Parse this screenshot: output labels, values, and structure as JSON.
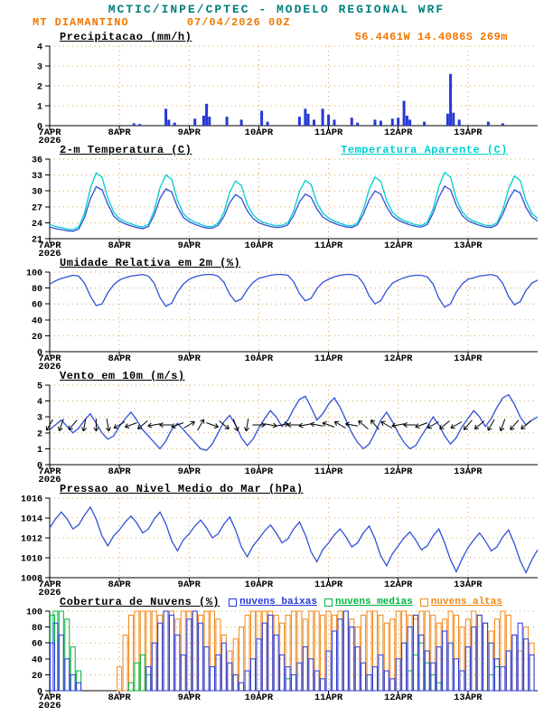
{
  "header": {
    "title": "MCTIC/INPE/CPTEC - MODELO REGIONAL WRF",
    "station": "MT DIAMANTINO",
    "run_datetime": "07/04/2026 00Z",
    "location": "56.4461W 14.4086S 269m"
  },
  "colors": {
    "title": "#007f7f",
    "accent_orange": "#f07800",
    "line_blue": "#3050d8",
    "cyan": "#00cfcf",
    "bar_blue": "#2638d8",
    "green": "#00b43c",
    "cloud_orange": "#f08818",
    "grid": "#d8a050",
    "axis": "#000000"
  },
  "x_axis": {
    "day_labels": [
      "7APR",
      "8APR",
      "9APR",
      "10APR",
      "11APR",
      "12APR",
      "13APR"
    ],
    "year_label": "2026",
    "hours_span": 168,
    "step_hours": 2
  },
  "chart_data": [
    {
      "id": "precipitation",
      "type": "bar",
      "title": "Precipitacao (mm/h)",
      "ylim": [
        0,
        4
      ],
      "yticks": [
        0,
        1,
        2,
        3,
        4
      ],
      "bar_color": "#2638d8",
      "bars": [
        [
          29,
          0.12
        ],
        [
          31,
          0.08
        ],
        [
          40,
          0.85
        ],
        [
          41,
          0.3
        ],
        [
          43,
          0.15
        ],
        [
          50,
          0.35
        ],
        [
          53,
          0.5
        ],
        [
          54,
          1.1
        ],
        [
          55,
          0.45
        ],
        [
          61,
          0.45
        ],
        [
          66,
          0.3
        ],
        [
          73,
          0.75
        ],
        [
          75,
          0.2
        ],
        [
          86,
          0.45
        ],
        [
          88,
          0.85
        ],
        [
          89,
          0.6
        ],
        [
          91,
          0.3
        ],
        [
          94,
          0.85
        ],
        [
          96,
          0.55
        ],
        [
          98,
          0.3
        ],
        [
          104,
          0.4
        ],
        [
          106,
          0.15
        ],
        [
          112,
          0.3
        ],
        [
          114,
          0.25
        ],
        [
          118,
          0.35
        ],
        [
          120,
          0.4
        ],
        [
          122,
          1.25
        ],
        [
          123,
          0.5
        ],
        [
          124,
          0.3
        ],
        [
          129,
          0.2
        ],
        [
          137,
          0.6
        ],
        [
          138,
          2.6
        ],
        [
          139,
          0.65
        ],
        [
          141,
          0.3
        ],
        [
          151,
          0.2
        ],
        [
          156,
          0.12
        ]
      ]
    },
    {
      "id": "temperature",
      "type": "line",
      "title": "2-m Temperatura (C)",
      "right_label": "Temperatura Aparente (C)",
      "ylim": [
        21,
        36
      ],
      "yticks": [
        21,
        24,
        27,
        30,
        33,
        36
      ],
      "series": [
        {
          "name": "2-m temperatura",
          "color": "#3050d8",
          "values": [
            23.2,
            22.9,
            22.7,
            22.5,
            22.4,
            22.8,
            25.0,
            28.5,
            30.8,
            30.2,
            27.5,
            25.3,
            24.3,
            23.8,
            23.4,
            23.1,
            22.9,
            23.3,
            25.5,
            28.6,
            30.4,
            29.8,
            27.0,
            25.0,
            24.2,
            23.7,
            23.3,
            23.0,
            23.0,
            23.5,
            25.2,
            27.8,
            29.3,
            28.6,
            26.3,
            24.8,
            24.0,
            23.6,
            23.3,
            23.1,
            23.2,
            23.6,
            25.4,
            27.9,
            29.4,
            28.8,
            26.6,
            25.1,
            24.4,
            23.9,
            23.5,
            23.2,
            23.1,
            23.6,
            25.6,
            28.3,
            30.0,
            29.4,
            27.0,
            25.3,
            24.5,
            24.0,
            23.6,
            23.3,
            23.2,
            23.7,
            25.8,
            28.8,
            30.9,
            30.2,
            27.3,
            25.4,
            24.4,
            23.9,
            23.5,
            23.2,
            23.1,
            23.6,
            25.6,
            28.4,
            30.2,
            29.6,
            26.9,
            25.1,
            24.3
          ]
        },
        {
          "name": "temperatura aparente",
          "color": "#00cfcf",
          "values": [
            23.7,
            23.3,
            23.1,
            22.8,
            22.7,
            23.2,
            25.8,
            30.5,
            33.4,
            32.6,
            28.7,
            26.0,
            24.8,
            24.2,
            23.8,
            23.4,
            23.2,
            23.7,
            26.3,
            30.6,
            33.0,
            32.2,
            28.2,
            25.7,
            24.7,
            24.1,
            23.7,
            23.3,
            23.3,
            23.9,
            26.0,
            29.8,
            31.9,
            31.0,
            27.5,
            25.5,
            24.5,
            24.0,
            23.7,
            23.4,
            23.5,
            24.0,
            26.2,
            29.9,
            32.0,
            31.2,
            27.8,
            25.8,
            24.9,
            24.3,
            23.9,
            23.5,
            23.4,
            24.0,
            26.4,
            30.3,
            32.6,
            31.8,
            28.2,
            26.0,
            25.0,
            24.4,
            24.0,
            23.6,
            23.5,
            24.1,
            26.6,
            30.8,
            33.5,
            32.6,
            28.5,
            26.1,
            24.9,
            24.3,
            23.9,
            23.5,
            23.4,
            24.0,
            26.4,
            30.4,
            32.8,
            32.0,
            28.1,
            25.8,
            24.8
          ]
        }
      ]
    },
    {
      "id": "humidity",
      "type": "line",
      "title": "Umidade Relativa em 2m (%)",
      "ylim": [
        0,
        100
      ],
      "yticks": [
        0,
        20,
        40,
        60,
        80,
        100
      ],
      "series": [
        {
          "name": "umidade relativa 2m",
          "color": "#3050d8",
          "values": [
            85,
            89,
            92,
            94,
            96,
            95,
            86,
            70,
            58,
            60,
            74,
            84,
            90,
            93,
            95,
            96,
            97,
            95,
            86,
            68,
            57,
            61,
            75,
            85,
            91,
            94,
            96,
            97,
            97,
            95,
            87,
            72,
            63,
            66,
            78,
            87,
            92,
            94,
            96,
            97,
            97,
            96,
            88,
            73,
            64,
            67,
            79,
            87,
            91,
            94,
            96,
            97,
            97,
            95,
            86,
            70,
            60,
            64,
            77,
            86,
            90,
            93,
            95,
            96,
            96,
            94,
            85,
            67,
            56,
            60,
            75,
            85,
            91,
            93,
            95,
            96,
            97,
            95,
            86,
            69,
            59,
            63,
            77,
            86,
            90
          ]
        }
      ]
    },
    {
      "id": "wind",
      "type": "wind",
      "title": "Vento em 10m (m/s)",
      "ylim": [
        0,
        5
      ],
      "yticks": [
        0,
        1,
        2,
        3,
        4,
        5
      ],
      "line_color": "#3050d8",
      "speed": [
        2.2,
        2.5,
        2.8,
        2.4,
        2.0,
        2.3,
        2.8,
        3.2,
        2.6,
        2.0,
        1.6,
        1.8,
        2.4,
        2.9,
        3.3,
        2.8,
        2.2,
        1.8,
        1.4,
        1.0,
        1.5,
        2.2,
        2.6,
        2.2,
        1.8,
        1.4,
        1.0,
        0.9,
        1.3,
        2.0,
        2.7,
        3.1,
        2.5,
        1.7,
        1.2,
        1.6,
        2.3,
        2.9,
        3.4,
        3.0,
        2.4,
        2.8,
        3.5,
        4.1,
        4.3,
        3.6,
        2.8,
        3.2,
        3.8,
        4.2,
        3.6,
        2.8,
        2.0,
        1.4,
        1.0,
        1.3,
        2.0,
        2.8,
        3.3,
        2.7,
        2.0,
        1.4,
        1.0,
        1.2,
        1.8,
        2.4,
        3.0,
        2.5,
        1.8,
        1.3,
        1.7,
        2.4,
        2.9,
        3.4,
        3.0,
        2.4,
        2.9,
        3.6,
        4.2,
        4.4,
        3.8,
        3.0,
        2.5,
        2.8,
        3.0
      ],
      "arrows": {
        "y_value": 2.5,
        "step_hours": 4,
        "color": "#000000",
        "dir_deg": [
          120,
          110,
          130,
          100,
          90,
          80,
          150,
          160,
          140,
          170,
          180,
          160,
          330,
          300,
          20,
          40,
          70,
          100,
          0,
          10,
          350,
          180,
          170,
          190,
          200,
          210,
          190,
          220,
          230,
          210,
          170,
          180,
          160,
          150,
          140,
          150,
          130,
          140,
          120,
          110,
          130,
          140
        ]
      }
    },
    {
      "id": "pressure",
      "type": "line",
      "title": "Pressao ao Nivel Medio do Mar (hPa)",
      "ylim": [
        1008,
        1016
      ],
      "yticks": [
        1008,
        1010,
        1012,
        1014,
        1016
      ],
      "series": [
        {
          "name": "pressao nivel medio do mar",
          "color": "#3050d8",
          "values": [
            1013.0,
            1013.9,
            1014.6,
            1013.9,
            1012.9,
            1013.3,
            1014.3,
            1015.1,
            1013.9,
            1012.2,
            1011.2,
            1012.2,
            1012.8,
            1013.6,
            1014.2,
            1013.5,
            1012.5,
            1012.9,
            1013.9,
            1014.6,
            1013.4,
            1011.7,
            1010.7,
            1011.8,
            1012.4,
            1013.2,
            1013.8,
            1013.0,
            1012.0,
            1012.4,
            1013.4,
            1014.1,
            1012.8,
            1011.1,
            1010.1,
            1011.2,
            1011.9,
            1012.7,
            1013.3,
            1012.5,
            1011.5,
            1011.9,
            1012.9,
            1013.6,
            1012.3,
            1010.6,
            1009.6,
            1010.8,
            1011.5,
            1012.3,
            1012.9,
            1012.1,
            1011.1,
            1011.5,
            1012.5,
            1013.2,
            1011.9,
            1010.2,
            1009.2,
            1010.4,
            1011.2,
            1012.0,
            1012.6,
            1011.8,
            1010.8,
            1011.2,
            1012.2,
            1012.9,
            1011.5,
            1009.8,
            1008.6,
            1009.9,
            1011.0,
            1011.8,
            1012.5,
            1011.7,
            1010.7,
            1011.1,
            1012.1,
            1012.8,
            1011.4,
            1009.7,
            1008.5,
            1009.8,
            1010.8
          ]
        }
      ]
    },
    {
      "id": "clouds",
      "type": "cloudbar",
      "title": "Cobertura de Nuvens (%)",
      "ylim": [
        0,
        100
      ],
      "yticks": [
        0,
        20,
        40,
        60,
        80,
        100
      ],
      "step_hours": 2,
      "legend": [
        {
          "label": "nuvens baixas",
          "color": "#2638d8"
        },
        {
          "label": "nuvens medias",
          "color": "#00b43c"
        },
        {
          "label": "nuvens altas",
          "color": "#f08818"
        }
      ],
      "series": [
        {
          "key": "altas",
          "color": "#f08818",
          "values": [
            0,
            0,
            0,
            0,
            0,
            0,
            0,
            0,
            0,
            0,
            0,
            0,
            30,
            70,
            95,
            100,
            100,
            100,
            100,
            95,
            100,
            100,
            90,
            100,
            100,
            100,
            95,
            100,
            100,
            90,
            70,
            50,
            65,
            80,
            95,
            100,
            100,
            100,
            100,
            95,
            85,
            95,
            100,
            100,
            90,
            100,
            100,
            95,
            100,
            95,
            100,
            100,
            90,
            80,
            95,
            100,
            100,
            95,
            85,
            90,
            100,
            100,
            95,
            90,
            100,
            100,
            95,
            85,
            90,
            100,
            95,
            80,
            90,
            100,
            95,
            85,
            75,
            90,
            100,
            95,
            70,
            50,
            80,
            60
          ]
        },
        {
          "key": "medias",
          "color": "#00b43c",
          "values": [
            95,
            100,
            100,
            90,
            55,
            25,
            0,
            0,
            0,
            0,
            0,
            0,
            0,
            0,
            10,
            35,
            45,
            20,
            0,
            0,
            0,
            0,
            0,
            0,
            0,
            0,
            0,
            0,
            0,
            0,
            0,
            0,
            0,
            0,
            0,
            0,
            0,
            0,
            0,
            0,
            0,
            15,
            0,
            0,
            0,
            0,
            0,
            0,
            0,
            0,
            0,
            0,
            0,
            0,
            0,
            0,
            0,
            0,
            0,
            0,
            0,
            0,
            25,
            45,
            60,
            35,
            20,
            10,
            0,
            0,
            0,
            0,
            0,
            0,
            0,
            0,
            20,
            30,
            0,
            0,
            0,
            0,
            0,
            0
          ]
        },
        {
          "key": "baixas",
          "color": "#2638d8",
          "values": [
            60,
            85,
            70,
            40,
            20,
            10,
            0,
            0,
            0,
            0,
            0,
            0,
            0,
            0,
            0,
            0,
            0,
            30,
            60,
            85,
            100,
            95,
            70,
            45,
            90,
            100,
            85,
            55,
            30,
            45,
            60,
            35,
            20,
            10,
            25,
            40,
            65,
            85,
            95,
            70,
            45,
            30,
            20,
            35,
            55,
            40,
            25,
            15,
            50,
            75,
            90,
            100,
            80,
            55,
            35,
            20,
            30,
            45,
            25,
            15,
            40,
            60,
            80,
            95,
            70,
            50,
            35,
            55,
            75,
            60,
            40,
            25,
            55,
            80,
            95,
            85,
            60,
            40,
            30,
            50,
            70,
            85,
            65,
            45
          ]
        }
      ]
    }
  ]
}
